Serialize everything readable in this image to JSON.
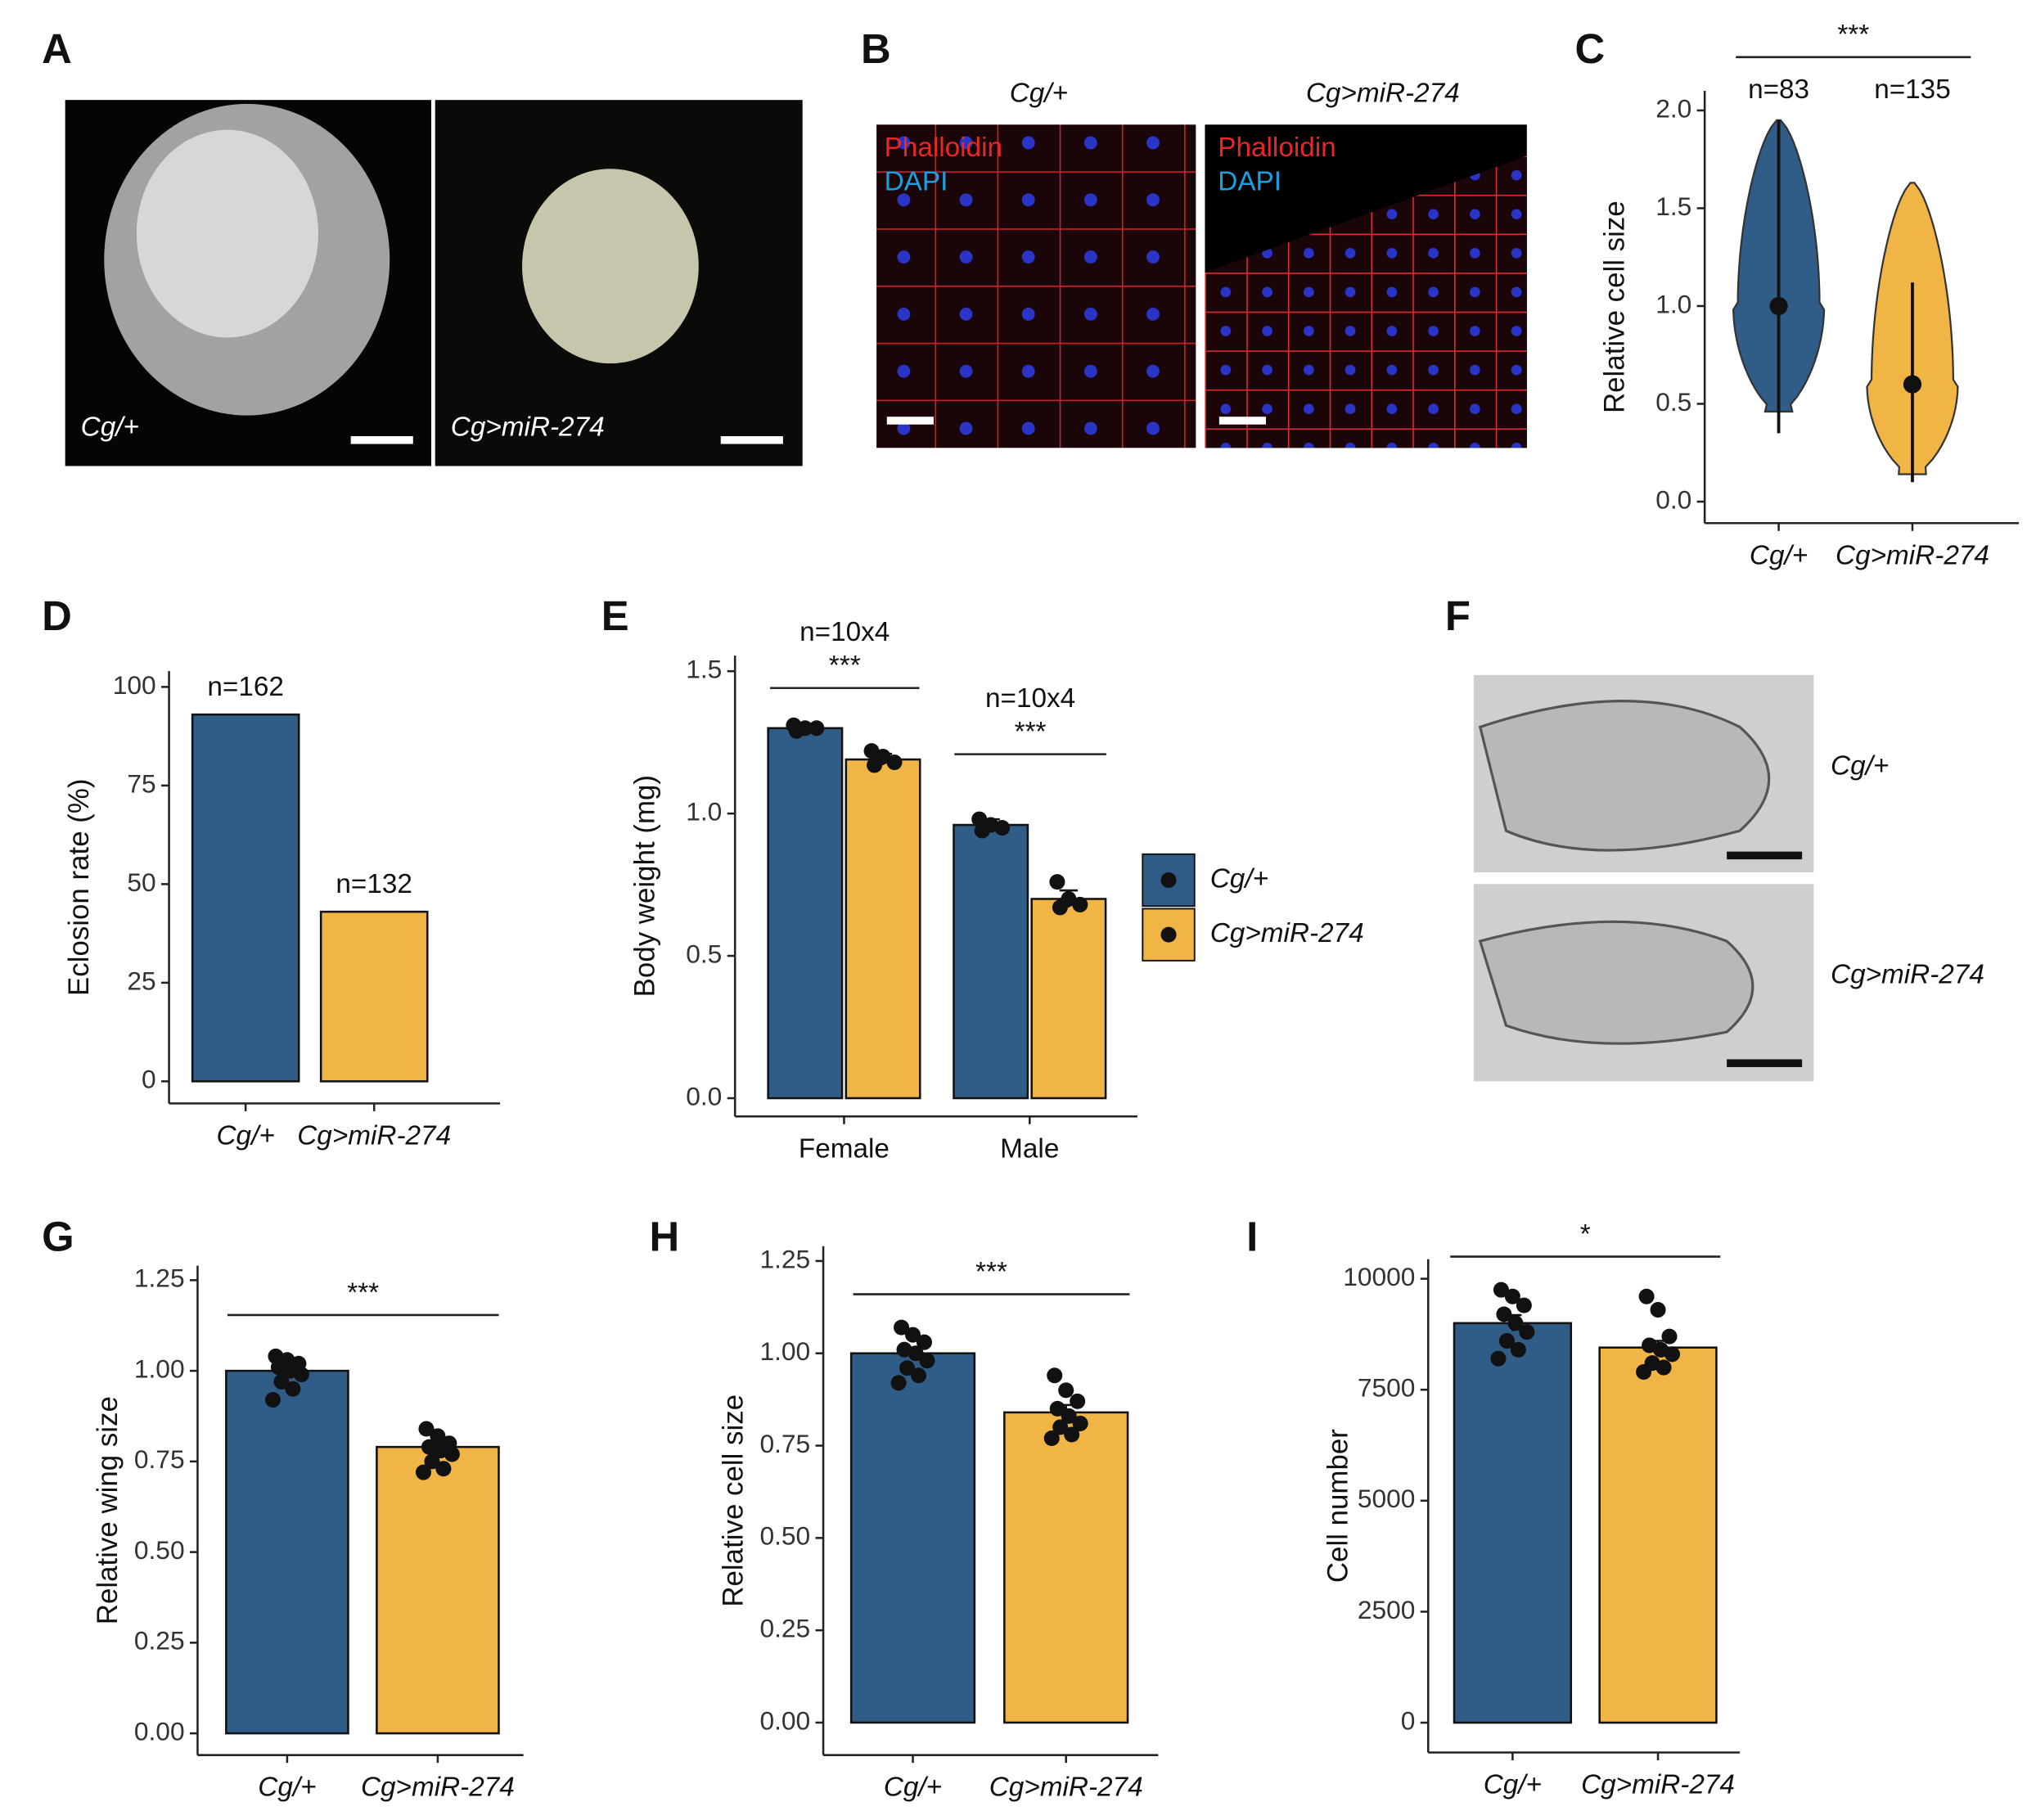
{
  "panel_letters": [
    "A",
    "B",
    "C",
    "D",
    "E",
    "F",
    "G",
    "H",
    "I"
  ],
  "images": {
    "A": {
      "labels": [
        "Cg/+",
        "Cg>miR-274"
      ]
    },
    "B": {
      "titles": [
        "Cg/+",
        "Cg>miR-274"
      ],
      "stains": [
        "Phalloidin",
        "DAPI"
      ]
    },
    "F": {
      "labels": [
        "Cg/+",
        "Cg>miR-274"
      ]
    }
  },
  "chart_data": [
    {
      "type": "violin",
      "ylabel": "Relative cell size",
      "categories": [
        "Cg/+",
        "Cg>miR-274"
      ],
      "colors": [
        "#2f5d87",
        "#f0b544"
      ],
      "values": [
        1.0,
        0.6
      ],
      "whisker_low": [
        0.35,
        0.1
      ],
      "whisker_high": [
        1.95,
        1.12
      ],
      "violin_low": [
        0.46,
        0.14
      ],
      "violin_high": [
        1.95,
        1.63
      ],
      "annotations": [
        "n=83",
        "n=135"
      ],
      "significance": "***",
      "ylim": [
        -0.11,
        2.1
      ],
      "yticks": [
        {
          "value": 0,
          "label": "0.0"
        },
        {
          "value": 0.5,
          "label": "0.5"
        },
        {
          "value": 1,
          "label": "1.0"
        },
        {
          "value": 1.5,
          "label": "1.5"
        },
        {
          "value": 2,
          "label": "2.0"
        }
      ]
    },
    {
      "type": "bar",
      "ylabel": "Eclosion rate (%)",
      "categories": [
        "Cg/+",
        "Cg>miR-274"
      ],
      "colors": [
        "#2f5d87",
        "#f0b544"
      ],
      "values": [
        93,
        43
      ],
      "annotations": [
        "n=162",
        "n=132"
      ],
      "ylim": [
        -5.6,
        104
      ],
      "yticks": [
        0,
        25,
        50,
        75,
        100
      ]
    },
    {
      "type": "grouped_bar",
      "ylabel": "Body weight (mg)",
      "categories": [
        "Female",
        "Male"
      ],
      "series": [
        {
          "name": "Cg/+",
          "color": "#2f5d87",
          "values": [
            1.3,
            0.96
          ],
          "errors": [
            0.01,
            0.02
          ],
          "points": [
            [
              1.31,
              1.3,
              1.3,
              1.29
            ],
            [
              0.98,
              0.96,
              0.95,
              0.94
            ]
          ]
        },
        {
          "name": "Cg>miR-274",
          "color": "#f0b544",
          "values": [
            1.19,
            0.7
          ],
          "errors": [
            0.02,
            0.03
          ],
          "points": [
            [
              1.22,
              1.2,
              1.18,
              1.17
            ],
            [
              0.76,
              0.7,
              0.68,
              0.67
            ]
          ]
        }
      ],
      "annotations": [
        "n=10x4",
        "n=10x4"
      ],
      "significance": [
        "***",
        "***"
      ],
      "ylim": [
        -0.064,
        1.555
      ],
      "yticks": [
        {
          "value": 0,
          "label": "0.0"
        },
        {
          "value": 0.5,
          "label": "0.5"
        },
        {
          "value": 1,
          "label": "1.0"
        },
        {
          "value": 1.5,
          "label": "1.5"
        }
      ]
    },
    {
      "type": "bar",
      "ylabel": "Relative wing size",
      "categories": [
        "Cg/+",
        "Cg>miR-274"
      ],
      "colors": [
        "#2f5d87",
        "#f0b544"
      ],
      "values": [
        1.0,
        0.79
      ],
      "errors": [
        0.01,
        0.015
      ],
      "points": [
        [
          1.04,
          1.03,
          1.02,
          1.01,
          1.0,
          0.99,
          0.97,
          0.95,
          0.92
        ],
        [
          0.84,
          0.82,
          0.8,
          0.79,
          0.78,
          0.77,
          0.75,
          0.73,
          0.72
        ]
      ],
      "significance": "***",
      "ylim": [
        -0.06,
        1.29
      ],
      "yticks": [
        {
          "value": 0,
          "label": "0.00"
        },
        {
          "value": 0.25,
          "label": "0.25"
        },
        {
          "value": 0.5,
          "label": "0.50"
        },
        {
          "value": 0.75,
          "label": "0.75"
        },
        {
          "value": 1,
          "label": "1.00"
        },
        {
          "value": 1.25,
          "label": "1.25"
        }
      ]
    },
    {
      "type": "bar",
      "ylabel": "Relative cell size",
      "categories": [
        "Cg/+",
        "Cg>miR-274"
      ],
      "colors": [
        "#2f5d87",
        "#f0b544"
      ],
      "values": [
        1.0,
        0.84
      ],
      "errors": [
        0.015,
        0.02
      ],
      "points": [
        [
          1.07,
          1.05,
          1.03,
          1.01,
          1.0,
          0.98,
          0.96,
          0.94,
          0.92
        ],
        [
          0.94,
          0.9,
          0.87,
          0.85,
          0.83,
          0.81,
          0.8,
          0.78,
          0.77
        ]
      ],
      "significance": "***",
      "ylim": [
        -0.088,
        1.29
      ],
      "yticks": [
        {
          "value": 0,
          "label": "0.00"
        },
        {
          "value": 0.25,
          "label": "0.25"
        },
        {
          "value": 0.5,
          "label": "0.50"
        },
        {
          "value": 0.75,
          "label": "0.75"
        },
        {
          "value": 1,
          "label": "1.00"
        },
        {
          "value": 1.25,
          "label": "1.25"
        }
      ]
    },
    {
      "type": "bar",
      "ylabel": "Cell number",
      "categories": [
        "Cg/+",
        "Cg>miR-274"
      ],
      "colors": [
        "#2f5d87",
        "#f0b544"
      ],
      "values": [
        9000,
        8450
      ],
      "errors": [
        180,
        150
      ],
      "points": [
        [
          9750,
          9600,
          9400,
          9200,
          9000,
          8800,
          8600,
          8400,
          8200
        ],
        [
          9600,
          9300,
          8700,
          8500,
          8400,
          8300,
          8100,
          8000,
          7900
        ]
      ],
      "significance": "*",
      "ylim": [
        -672,
        10440
      ],
      "yticks": [
        0,
        2500,
        5000,
        7500,
        10000
      ]
    }
  ]
}
